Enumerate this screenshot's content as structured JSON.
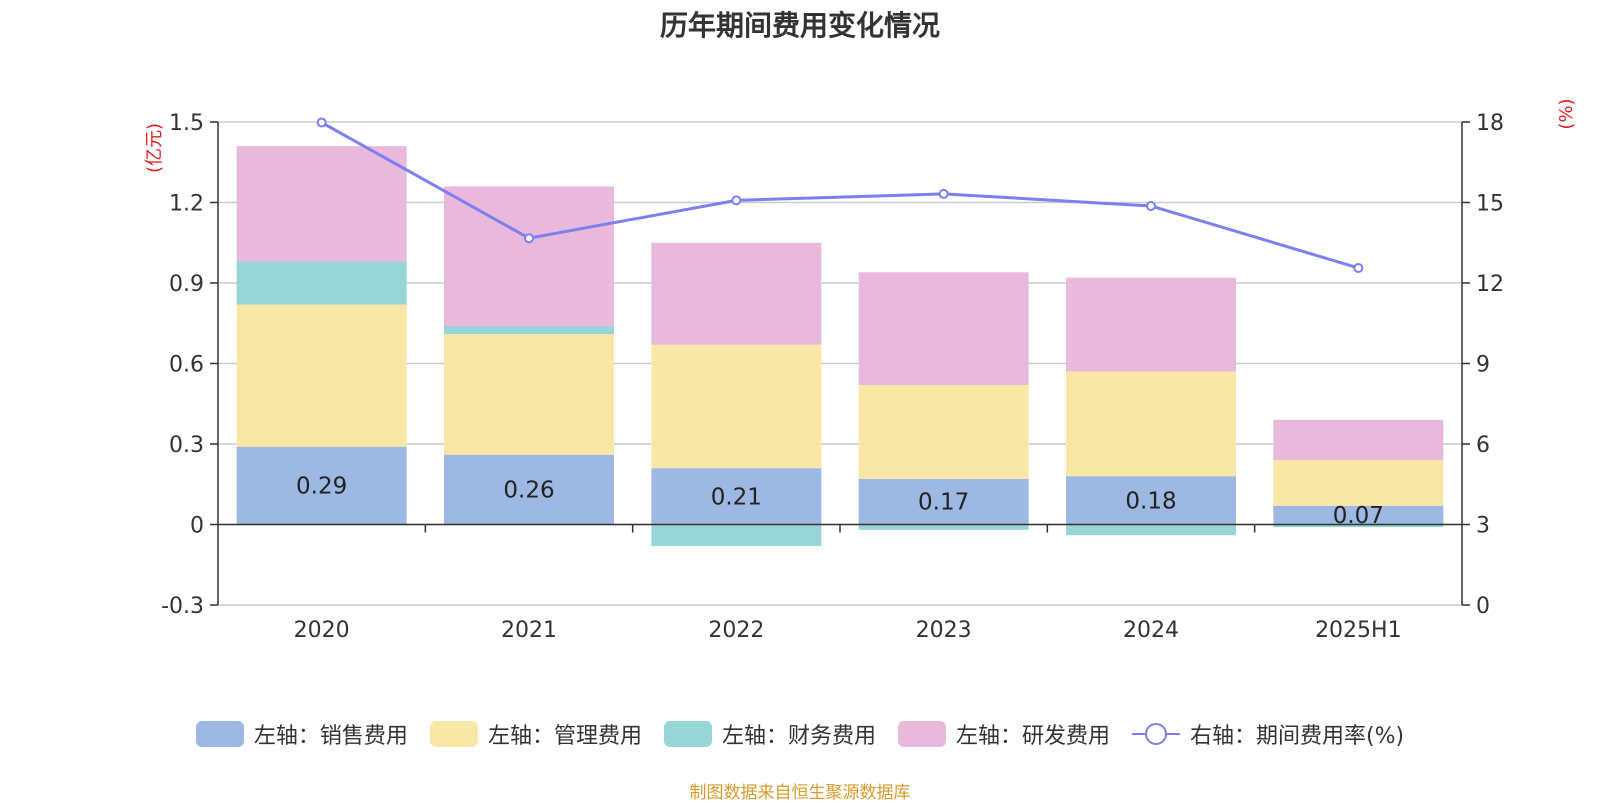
{
  "chart_data": {
    "type": "bar",
    "title": "历年期间费用变化情况",
    "categories": [
      "2020",
      "2021",
      "2022",
      "2023",
      "2024",
      "2025H1"
    ],
    "y_left": {
      "unit": "(亿元)",
      "range": [
        -0.3,
        1.5
      ],
      "ticks": [
        -0.3,
        0,
        0.3,
        0.6,
        0.9,
        1.2,
        1.5
      ]
    },
    "y_right": {
      "unit": "(%)",
      "range": [
        0,
        18
      ],
      "ticks": [
        0,
        3,
        6,
        9,
        12,
        15,
        18
      ]
    },
    "series": [
      {
        "name": "左轴：销售费用",
        "axis": "left",
        "stack": true,
        "color": "#9db8e2",
        "values": [
          0.29,
          0.26,
          0.21,
          0.17,
          0.18,
          0.07
        ],
        "labels": [
          "0.29",
          "0.26",
          "0.21",
          "0.17",
          "0.18",
          "0.07"
        ]
      },
      {
        "name": "左轴：管理费用",
        "axis": "left",
        "stack": true,
        "color": "#f9e7a7",
        "values": [
          0.53,
          0.45,
          0.46,
          0.35,
          0.39,
          0.17
        ]
      },
      {
        "name": "左轴：财务费用",
        "axis": "left",
        "stack": true,
        "color": "#97d5d6",
        "values": [
          0.16,
          0.03,
          -0.08,
          -0.02,
          -0.04,
          -0.01
        ]
      },
      {
        "name": "左轴：研发费用",
        "axis": "left",
        "stack": true,
        "color": "#e8b9da",
        "values": [
          0.43,
          0.52,
          0.38,
          0.42,
          0.35,
          0.15
        ]
      },
      {
        "name": "右轴：期间费用率(%)",
        "axis": "right",
        "type": "line",
        "color": "#7b7ff0",
        "values": [
          17.98,
          13.67,
          15.08,
          15.32,
          14.87,
          12.56
        ]
      }
    ],
    "legend": "bottom",
    "grid": true
  },
  "source": "制图数据来自恒生聚源数据库"
}
